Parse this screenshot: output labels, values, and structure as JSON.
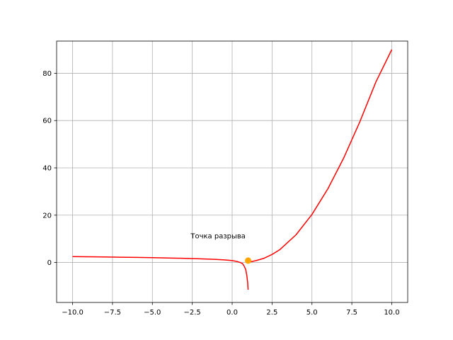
{
  "chart_data": {
    "type": "line",
    "title": "",
    "xlabel": "",
    "ylabel": "",
    "xlim": [
      -11.0,
      11.0
    ],
    "ylim": [
      -16.9,
      93.6
    ],
    "grid": true,
    "x_ticks": [
      -10.0,
      -7.5,
      -5.0,
      -2.5,
      0.0,
      2.5,
      5.0,
      7.5,
      10.0
    ],
    "x_tick_labels": [
      "−10.0",
      "−7.5",
      "−5.0",
      "−2.5",
      "0.0",
      "2.5",
      "5.0",
      "7.5",
      "10.0"
    ],
    "y_ticks": [
      0,
      20,
      40,
      60,
      80
    ],
    "y_tick_labels": [
      "0",
      "20",
      "40",
      "60",
      "80"
    ],
    "series": [
      {
        "color": "#ff0000",
        "segments": [
          [
            [
              -10.0,
              2.5
            ],
            [
              -9.0,
              2.42
            ],
            [
              -8.0,
              2.33
            ],
            [
              -7.0,
              2.24
            ],
            [
              -6.0,
              2.14
            ],
            [
              -5.0,
              2.03
            ],
            [
              -4.0,
              1.9
            ],
            [
              -3.0,
              1.75
            ],
            [
              -2.0,
              1.56
            ],
            [
              -1.0,
              1.3
            ],
            [
              -0.5,
              1.1
            ],
            [
              0.0,
              0.8
            ],
            [
              0.3,
              0.45
            ],
            [
              0.5,
              0.0
            ],
            [
              0.65,
              -0.5
            ],
            [
              0.75,
              -1.5
            ],
            [
              0.85,
              -3.0
            ],
            [
              0.92,
              -5.5
            ],
            [
              0.97,
              -8.5
            ],
            [
              1.0,
              -11.5
            ]
          ],
          [
            [
              1.1,
              0.2
            ],
            [
              1.5,
              0.8
            ],
            [
              2.0,
              1.8
            ],
            [
              2.5,
              3.4
            ],
            [
              3.0,
              5.5
            ],
            [
              4.0,
              11.7
            ],
            [
              5.0,
              20.3
            ],
            [
              6.0,
              31.2
            ],
            [
              7.0,
              44.3
            ],
            [
              8.0,
              59.5
            ],
            [
              9.0,
              76.2
            ],
            [
              10.0,
              90.0
            ]
          ]
        ]
      }
    ],
    "points": [
      {
        "x": 1.0,
        "y": 0.8,
        "color": "#ffa500"
      }
    ],
    "annotations": [
      {
        "text": "Точка разрыва",
        "x": -2.6,
        "y": 10.2
      }
    ]
  }
}
